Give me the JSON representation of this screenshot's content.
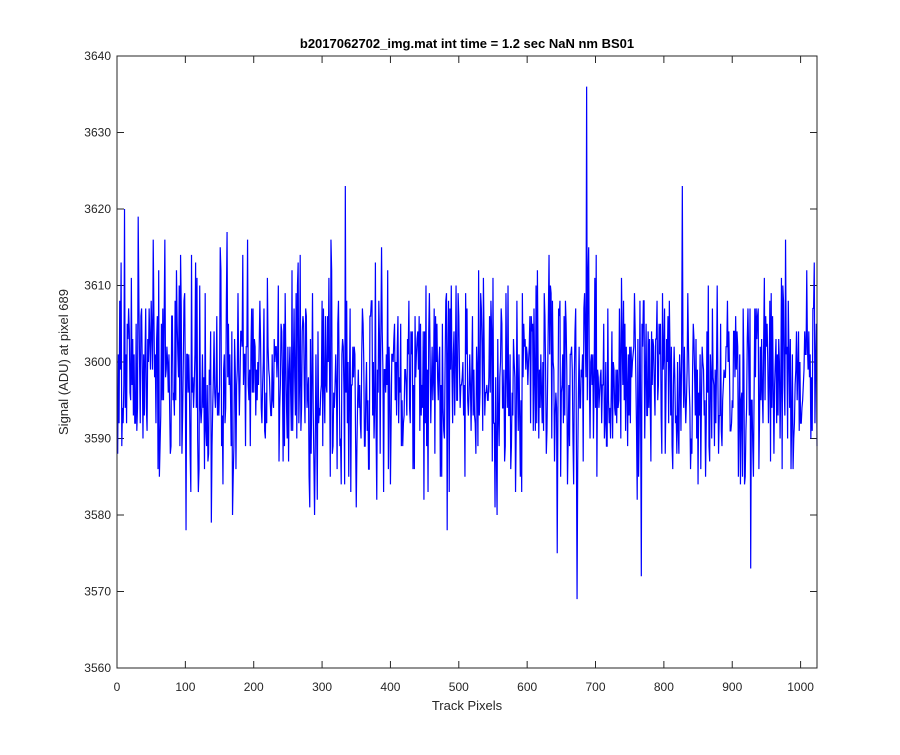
{
  "chart_data": {
    "type": "line",
    "title": "b2017062702_img.mat int time = 1.2 sec  NaN nm BS01",
    "xlabel": "Track Pixels",
    "ylabel": "Signal (ADU) at pixel 689",
    "xlim": [
      0,
      1024
    ],
    "ylim": [
      3560,
      3640
    ],
    "xticks": [
      0,
      100,
      200,
      300,
      400,
      500,
      600,
      700,
      800,
      900,
      1000
    ],
    "yticks": [
      3560,
      3570,
      3580,
      3590,
      3600,
      3610,
      3620,
      3630,
      3640
    ],
    "grid": false,
    "series": [
      {
        "color": "#0000ff",
        "noise": {
          "count": 1024,
          "mean": 3598,
          "amplitude": 7,
          "min": 3578,
          "max": 3619
        },
        "notable_points": [
          {
            "x": 0,
            "y": 3588
          },
          {
            "x": 10,
            "y": 3620
          },
          {
            "x": 30,
            "y": 3619
          },
          {
            "x": 52,
            "y": 3616
          },
          {
            "x": 100,
            "y": 3578
          },
          {
            "x": 137,
            "y": 3579
          },
          {
            "x": 160,
            "y": 3617
          },
          {
            "x": 168,
            "y": 3580
          },
          {
            "x": 190,
            "y": 3616
          },
          {
            "x": 288,
            "y": 3580
          },
          {
            "x": 312,
            "y": 3616
          },
          {
            "x": 333,
            "y": 3623
          },
          {
            "x": 349,
            "y": 3581
          },
          {
            "x": 482,
            "y": 3578
          },
          {
            "x": 555,
            "y": 3580
          },
          {
            "x": 631,
            "y": 3614
          },
          {
            "x": 643,
            "y": 3575
          },
          {
            "x": 672,
            "y": 3569
          },
          {
            "x": 686,
            "y": 3636
          },
          {
            "x": 766,
            "y": 3572
          },
          {
            "x": 826,
            "y": 3623
          },
          {
            "x": 926,
            "y": 3573
          },
          {
            "x": 1019,
            "y": 3613
          },
          {
            "x": 1024,
            "y": 3589
          }
        ]
      }
    ]
  }
}
